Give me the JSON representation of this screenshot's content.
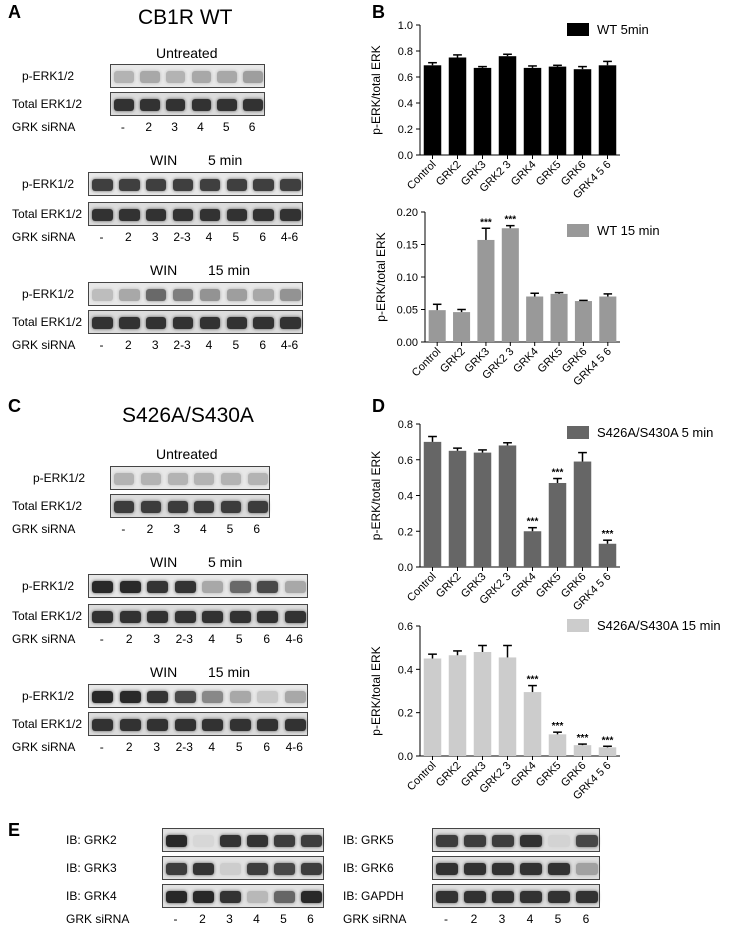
{
  "panels": {
    "A": {
      "letter": "A",
      "title": "CB1R WT",
      "blots": [
        {
          "title": "Untreated",
          "rows": [
            "p-ERK1/2",
            "Total ERK1/2"
          ],
          "sirna_label": "GRK siRNA",
          "lanes": [
            "-",
            "2",
            "3",
            "4",
            "5",
            "6"
          ]
        },
        {
          "title_left": "WIN",
          "title_right": "5 min",
          "rows": [
            "p-ERK1/2",
            "Total ERK1/2"
          ],
          "sirna_label": "GRK siRNA",
          "lanes": [
            "-",
            "2",
            "3",
            "2-3",
            "4",
            "5",
            "6",
            "4-6"
          ]
        },
        {
          "title_left": "WIN",
          "title_right": "15 min",
          "rows": [
            "p-ERK1/2",
            "Total ERK1/2"
          ],
          "sirna_label": "GRK siRNA",
          "lanes": [
            "-",
            "2",
            "3",
            "2-3",
            "4",
            "5",
            "6",
            "4-6"
          ]
        }
      ]
    },
    "C": {
      "letter": "C",
      "title": "S426A/S430A",
      "blots": [
        {
          "title": "Untreated",
          "rows": [
            "p-ERK1/2",
            "Total ERK1/2"
          ],
          "sirna_label": "GRK siRNA",
          "lanes": [
            "-",
            "2",
            "3",
            "4",
            "5",
            "6"
          ]
        },
        {
          "title_left": "WIN",
          "title_right": "5 min",
          "rows": [
            "p-ERK1/2",
            "Total ERK1/2"
          ],
          "sirna_label": "GRK siRNA",
          "lanes": [
            "-",
            "2",
            "3",
            "2-3",
            "4",
            "5",
            "6",
            "4-6"
          ]
        },
        {
          "title_left": "WIN",
          "title_right": "15 min",
          "rows": [
            "p-ERK1/2",
            "Total ERK1/2"
          ],
          "sirna_label": "GRK siRNA",
          "lanes": [
            "-",
            "2",
            "3",
            "2-3",
            "4",
            "5",
            "6",
            "4-6"
          ]
        }
      ]
    },
    "B": {
      "letter": "B"
    },
    "D": {
      "letter": "D"
    },
    "E": {
      "letter": "E",
      "left_rows": [
        "IB: GRK2",
        "IB: GRK3",
        "IB: GRK4"
      ],
      "right_rows": [
        "IB: GRK5",
        "IB: GRK6",
        "IB: GAPDH"
      ],
      "sirna_label": "GRK siRNA",
      "lanes": [
        "-",
        "2",
        "3",
        "4",
        "5",
        "6"
      ]
    }
  },
  "chart_data": [
    {
      "id": "B-top",
      "type": "bar",
      "categories": [
        "Control",
        "GRK2",
        "GRK3",
        "GRK2 3",
        "GRK4",
        "GRK5",
        "GRK6",
        "GRK4 5 6"
      ],
      "series": [
        {
          "name": "WT 5min",
          "values": [
            0.69,
            0.75,
            0.67,
            0.76,
            0.67,
            0.68,
            0.66,
            0.69
          ],
          "errors": [
            0.02,
            0.02,
            0.01,
            0.015,
            0.015,
            0.01,
            0.02,
            0.03
          ]
        }
      ],
      "ylabel": "p-ERK/total ERK",
      "ylim": [
        0,
        1.0
      ],
      "yticks": [
        "0.0",
        "0.2",
        "0.4",
        "0.6",
        "0.8",
        "1.0"
      ],
      "significance": [
        "",
        "",
        "",
        "",
        "",
        "",
        "",
        ""
      ],
      "color": "#000000"
    },
    {
      "id": "B-bottom",
      "type": "bar",
      "categories": [
        "Control",
        "GRK2",
        "GRK3",
        "GRK2 3",
        "GRK4",
        "GRK5",
        "GRK6",
        "GRK4 5 6"
      ],
      "series": [
        {
          "name": "WT 15 min",
          "values": [
            0.049,
            0.046,
            0.157,
            0.175,
            0.07,
            0.074,
            0.063,
            0.07
          ],
          "errors": [
            0.009,
            0.004,
            0.018,
            0.004,
            0.005,
            0.002,
            0.001,
            0.004
          ]
        }
      ],
      "ylabel": "p-ERK/total ERK",
      "ylim": [
        0,
        0.2
      ],
      "yticks": [
        "0.00",
        "0.05",
        "0.10",
        "0.15",
        "0.20"
      ],
      "significance": [
        "",
        "",
        "***",
        "***",
        "",
        "",
        "",
        ""
      ],
      "color": "#999999"
    },
    {
      "id": "D-top",
      "type": "bar",
      "categories": [
        "Control",
        "GRK2",
        "GRK3",
        "GRK2 3",
        "GRK4",
        "GRK5",
        "GRK6",
        "GRK4 5 6"
      ],
      "series": [
        {
          "name": "S426A/S430A 5 min",
          "values": [
            0.7,
            0.65,
            0.64,
            0.68,
            0.2,
            0.47,
            0.59,
            0.13
          ],
          "errors": [
            0.03,
            0.015,
            0.015,
            0.015,
            0.02,
            0.025,
            0.05,
            0.02
          ]
        }
      ],
      "ylabel": "p-ERK/total ERK",
      "ylim": [
        0,
        0.8
      ],
      "yticks": [
        "0.0",
        "0.2",
        "0.4",
        "0.6",
        "0.8"
      ],
      "significance": [
        "",
        "",
        "",
        "",
        "***",
        "***",
        "",
        "***"
      ],
      "color": "#666666"
    },
    {
      "id": "D-bottom",
      "type": "bar",
      "categories": [
        "Control",
        "GRK2",
        "GRK3",
        "GRK2 3",
        "GRK4",
        "GRK5",
        "GRK6",
        "GRK4 5 6"
      ],
      "series": [
        {
          "name": "S426A/S430A 15 min",
          "values": [
            0.45,
            0.465,
            0.48,
            0.455,
            0.295,
            0.1,
            0.05,
            0.04
          ],
          "errors": [
            0.02,
            0.02,
            0.03,
            0.055,
            0.03,
            0.01,
            0.005,
            0.005
          ]
        }
      ],
      "ylabel": "p-ERK/total ERK",
      "ylim": [
        0,
        0.6
      ],
      "yticks": [
        "0.0",
        "0.2",
        "0.4",
        "0.6"
      ],
      "significance": [
        "",
        "",
        "",
        "",
        "***",
        "***",
        "***",
        "***"
      ],
      "color": "#cccccc"
    }
  ]
}
